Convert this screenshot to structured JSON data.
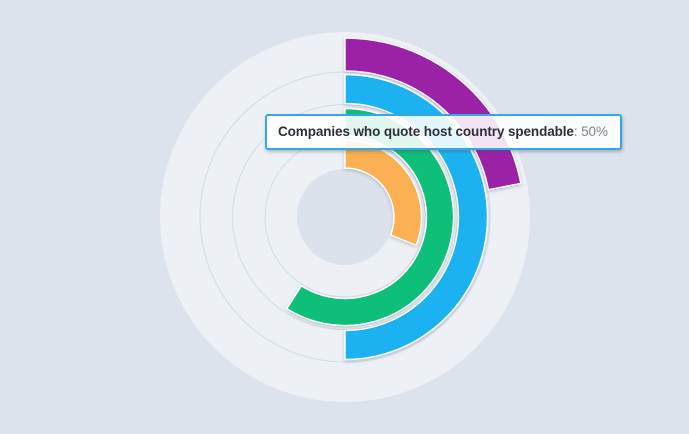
{
  "tooltip": {
    "label": "Companies who quote host country spendable",
    "separator": ": ",
    "value": "50%"
  },
  "chart_data": {
    "type": "radial-bar",
    "title": "",
    "unit": "%",
    "start_angle_deg": 0,
    "max_value": 100,
    "legend": "none",
    "rings": [
      {
        "position": "outer",
        "label": "",
        "value": 22,
        "color": "#9b20a7",
        "highlighted": false
      },
      {
        "position": "second",
        "label": "Companies who quote host country spendable",
        "value": 50,
        "color": "#1fb2f2",
        "highlighted": true
      },
      {
        "position": "third",
        "label": "",
        "value": 59,
        "color": "#09bf78",
        "highlighted": false
      },
      {
        "position": "inner",
        "label": "",
        "value": 31,
        "color": "#fbb053",
        "highlighted": false
      }
    ],
    "background": {
      "page": "#dde3ec",
      "disc": "#edf0f5",
      "hole": "#dbe2ec",
      "track_line": "#d3dbe7"
    }
  },
  "colors": {
    "tooltip_border": "#34a7e4",
    "tooltip_label_text": "#2e2e38",
    "tooltip_value_text": "#83838c"
  }
}
